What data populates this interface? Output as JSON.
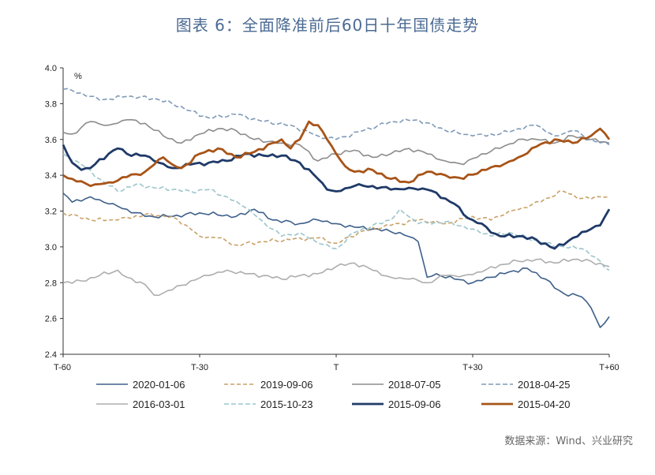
{
  "title": "图表 6：全面降准前后60日十年国债走势",
  "source": "数据来源：Wind、兴业研究",
  "chart_data": {
    "type": "line",
    "ylabel": "%",
    "ylim": [
      2.4,
      4.0
    ],
    "yticks": [
      "4.0",
      "3.8",
      "3.6",
      "3.4",
      "3.2",
      "3.0",
      "2.8",
      "2.6",
      "2.4"
    ],
    "xticks": [
      {
        "pos": -60,
        "label": "T-60"
      },
      {
        "pos": -30,
        "label": "T-30"
      },
      {
        "pos": 0,
        "label": "T"
      },
      {
        "pos": 30,
        "label": "T+30"
      },
      {
        "pos": 60,
        "label": "T+60"
      }
    ],
    "xlim": [
      -60,
      60
    ],
    "grid": false,
    "legend": "bottom",
    "series": [
      {
        "name": "2020-01-06",
        "color": "#3e5f8a",
        "width": 1.6,
        "dash": "",
        "keys": [
          [
            -60,
            3.3
          ],
          [
            -58,
            3.25
          ],
          [
            -54,
            3.28
          ],
          [
            -50,
            3.24
          ],
          [
            -46,
            3.21
          ],
          [
            -42,
            3.17
          ],
          [
            -36,
            3.17
          ],
          [
            -30,
            3.19
          ],
          [
            -22,
            3.17
          ],
          [
            -18,
            3.21
          ],
          [
            -14,
            3.15
          ],
          [
            -8,
            3.13
          ],
          [
            -4,
            3.15
          ],
          [
            0,
            3.13
          ],
          [
            4,
            3.11
          ],
          [
            8,
            3.1
          ],
          [
            14,
            3.08
          ],
          [
            18,
            3.03
          ],
          [
            20,
            2.83
          ],
          [
            22,
            2.85
          ],
          [
            26,
            2.82
          ],
          [
            30,
            2.8
          ],
          [
            34,
            2.83
          ],
          [
            38,
            2.86
          ],
          [
            42,
            2.88
          ],
          [
            46,
            2.82
          ],
          [
            48,
            2.77
          ],
          [
            50,
            2.74
          ],
          [
            54,
            2.72
          ],
          [
            56,
            2.66
          ],
          [
            58,
            2.55
          ],
          [
            60,
            2.61
          ]
        ]
      },
      {
        "name": "2019-09-06",
        "color": "#c9a066",
        "width": 1.6,
        "dash": "5,3",
        "keys": [
          [
            -60,
            3.19
          ],
          [
            -54,
            3.15
          ],
          [
            -48,
            3.15
          ],
          [
            -42,
            3.18
          ],
          [
            -36,
            3.17
          ],
          [
            -32,
            3.1
          ],
          [
            -30,
            3.06
          ],
          [
            -26,
            3.05
          ],
          [
            -22,
            3.01
          ],
          [
            -16,
            3.03
          ],
          [
            -10,
            3.04
          ],
          [
            -4,
            3.05
          ],
          [
            0,
            3.02
          ],
          [
            6,
            3.09
          ],
          [
            12,
            3.12
          ],
          [
            18,
            3.15
          ],
          [
            24,
            3.13
          ],
          [
            30,
            3.17
          ],
          [
            34,
            3.15
          ],
          [
            38,
            3.2
          ],
          [
            42,
            3.22
          ],
          [
            46,
            3.27
          ],
          [
            50,
            3.31
          ],
          [
            54,
            3.27
          ],
          [
            58,
            3.28
          ],
          [
            60,
            3.28
          ]
        ]
      },
      {
        "name": "2018-07-05",
        "color": "#8c8c8c",
        "width": 1.6,
        "dash": "",
        "keys": [
          [
            -60,
            3.64
          ],
          [
            -58,
            3.63
          ],
          [
            -54,
            3.7
          ],
          [
            -50,
            3.68
          ],
          [
            -46,
            3.71
          ],
          [
            -42,
            3.69
          ],
          [
            -38,
            3.62
          ],
          [
            -34,
            3.58
          ],
          [
            -30,
            3.63
          ],
          [
            -26,
            3.66
          ],
          [
            -22,
            3.65
          ],
          [
            -18,
            3.6
          ],
          [
            -12,
            3.58
          ],
          [
            -8,
            3.57
          ],
          [
            -4,
            3.48
          ],
          [
            0,
            3.52
          ],
          [
            4,
            3.54
          ],
          [
            8,
            3.5
          ],
          [
            12,
            3.52
          ],
          [
            16,
            3.55
          ],
          [
            20,
            3.52
          ],
          [
            24,
            3.48
          ],
          [
            28,
            3.46
          ],
          [
            32,
            3.52
          ],
          [
            36,
            3.55
          ],
          [
            40,
            3.6
          ],
          [
            44,
            3.6
          ],
          [
            48,
            3.58
          ],
          [
            52,
            3.62
          ],
          [
            56,
            3.6
          ],
          [
            60,
            3.58
          ]
        ]
      },
      {
        "name": "2018-04-25",
        "color": "#7f9ab8",
        "width": 1.6,
        "dash": "6,3",
        "keys": [
          [
            -60,
            3.88
          ],
          [
            -56,
            3.86
          ],
          [
            -52,
            3.82
          ],
          [
            -46,
            3.84
          ],
          [
            -40,
            3.83
          ],
          [
            -36,
            3.8
          ],
          [
            -32,
            3.76
          ],
          [
            -28,
            3.72
          ],
          [
            -22,
            3.74
          ],
          [
            -16,
            3.7
          ],
          [
            -10,
            3.68
          ],
          [
            -4,
            3.62
          ],
          [
            0,
            3.6
          ],
          [
            6,
            3.65
          ],
          [
            12,
            3.7
          ],
          [
            18,
            3.71
          ],
          [
            24,
            3.65
          ],
          [
            30,
            3.62
          ],
          [
            36,
            3.63
          ],
          [
            40,
            3.66
          ],
          [
            44,
            3.68
          ],
          [
            48,
            3.62
          ],
          [
            52,
            3.65
          ],
          [
            56,
            3.6
          ],
          [
            60,
            3.57
          ]
        ]
      },
      {
        "name": "2016-03-01",
        "color": "#adadad",
        "width": 1.6,
        "dash": "",
        "keys": [
          [
            -60,
            2.8
          ],
          [
            -56,
            2.81
          ],
          [
            -52,
            2.84
          ],
          [
            -48,
            2.87
          ],
          [
            -46,
            2.83
          ],
          [
            -42,
            2.79
          ],
          [
            -40,
            2.73
          ],
          [
            -36,
            2.76
          ],
          [
            -32,
            2.81
          ],
          [
            -28,
            2.84
          ],
          [
            -24,
            2.87
          ],
          [
            -20,
            2.85
          ],
          [
            -16,
            2.84
          ],
          [
            -12,
            2.82
          ],
          [
            -8,
            2.84
          ],
          [
            -4,
            2.85
          ],
          [
            0,
            2.89
          ],
          [
            4,
            2.91
          ],
          [
            8,
            2.87
          ],
          [
            12,
            2.83
          ],
          [
            16,
            2.82
          ],
          [
            20,
            2.8
          ],
          [
            24,
            2.84
          ],
          [
            28,
            2.84
          ],
          [
            32,
            2.86
          ],
          [
            36,
            2.9
          ],
          [
            40,
            2.92
          ],
          [
            44,
            2.93
          ],
          [
            48,
            2.91
          ],
          [
            52,
            2.93
          ],
          [
            56,
            2.92
          ],
          [
            60,
            2.89
          ]
        ]
      },
      {
        "name": "2015-10-23",
        "color": "#9cc5cc",
        "width": 1.6,
        "dash": "6,3",
        "keys": [
          [
            -60,
            3.52
          ],
          [
            -56,
            3.46
          ],
          [
            -52,
            3.38
          ],
          [
            -48,
            3.31
          ],
          [
            -44,
            3.35
          ],
          [
            -40,
            3.33
          ],
          [
            -36,
            3.32
          ],
          [
            -32,
            3.31
          ],
          [
            -28,
            3.32
          ],
          [
            -24,
            3.28
          ],
          [
            -20,
            3.22
          ],
          [
            -16,
            3.14
          ],
          [
            -12,
            3.06
          ],
          [
            -8,
            3.08
          ],
          [
            -4,
            3.02
          ],
          [
            0,
            2.99
          ],
          [
            4,
            3.08
          ],
          [
            8,
            3.12
          ],
          [
            12,
            3.15
          ],
          [
            14,
            3.21
          ],
          [
            18,
            3.13
          ],
          [
            24,
            3.14
          ],
          [
            30,
            3.1
          ],
          [
            34,
            3.06
          ],
          [
            38,
            3.08
          ],
          [
            42,
            3.05
          ],
          [
            46,
            3.02
          ],
          [
            50,
            3.0
          ],
          [
            54,
            2.99
          ],
          [
            58,
            2.92
          ],
          [
            60,
            2.87
          ]
        ]
      },
      {
        "name": "2015-09-06",
        "color": "#1f3a68",
        "width": 2.8,
        "dash": "",
        "keys": [
          [
            -60,
            3.57
          ],
          [
            -58,
            3.47
          ],
          [
            -56,
            3.43
          ],
          [
            -54,
            3.44
          ],
          [
            -50,
            3.52
          ],
          [
            -48,
            3.55
          ],
          [
            -46,
            3.52
          ],
          [
            -42,
            3.51
          ],
          [
            -40,
            3.48
          ],
          [
            -36,
            3.44
          ],
          [
            -32,
            3.46
          ],
          [
            -28,
            3.47
          ],
          [
            -24,
            3.48
          ],
          [
            -20,
            3.52
          ],
          [
            -16,
            3.51
          ],
          [
            -12,
            3.51
          ],
          [
            -8,
            3.47
          ],
          [
            -4,
            3.38
          ],
          [
            -2,
            3.32
          ],
          [
            0,
            3.31
          ],
          [
            4,
            3.34
          ],
          [
            8,
            3.34
          ],
          [
            12,
            3.32
          ],
          [
            16,
            3.33
          ],
          [
            20,
            3.32
          ],
          [
            24,
            3.27
          ],
          [
            26,
            3.24
          ],
          [
            28,
            3.18
          ],
          [
            30,
            3.15
          ],
          [
            32,
            3.13
          ],
          [
            34,
            3.08
          ],
          [
            36,
            3.06
          ],
          [
            40,
            3.06
          ],
          [
            44,
            3.04
          ],
          [
            48,
            2.99
          ],
          [
            52,
            3.05
          ],
          [
            56,
            3.1
          ],
          [
            58,
            3.12
          ],
          [
            60,
            3.21
          ]
        ]
      },
      {
        "name": "2015-04-20",
        "color": "#a85418",
        "width": 2.8,
        "dash": "",
        "keys": [
          [
            -60,
            3.4
          ],
          [
            -58,
            3.38
          ],
          [
            -54,
            3.34
          ],
          [
            -50,
            3.36
          ],
          [
            -46,
            3.39
          ],
          [
            -42,
            3.42
          ],
          [
            -38,
            3.5
          ],
          [
            -36,
            3.46
          ],
          [
            -34,
            3.44
          ],
          [
            -30,
            3.52
          ],
          [
            -26,
            3.55
          ],
          [
            -22,
            3.5
          ],
          [
            -18,
            3.53
          ],
          [
            -14,
            3.58
          ],
          [
            -12,
            3.6
          ],
          [
            -10,
            3.55
          ],
          [
            -8,
            3.6
          ],
          [
            -6,
            3.7
          ],
          [
            -4,
            3.68
          ],
          [
            -2,
            3.6
          ],
          [
            0,
            3.52
          ],
          [
            2,
            3.45
          ],
          [
            4,
            3.42
          ],
          [
            8,
            3.43
          ],
          [
            12,
            3.38
          ],
          [
            16,
            3.36
          ],
          [
            20,
            3.42
          ],
          [
            24,
            3.4
          ],
          [
            28,
            3.38
          ],
          [
            32,
            3.43
          ],
          [
            36,
            3.45
          ],
          [
            40,
            3.5
          ],
          [
            44,
            3.56
          ],
          [
            48,
            3.6
          ],
          [
            52,
            3.58
          ],
          [
            56,
            3.62
          ],
          [
            58,
            3.66
          ],
          [
            60,
            3.6
          ]
        ]
      }
    ]
  }
}
